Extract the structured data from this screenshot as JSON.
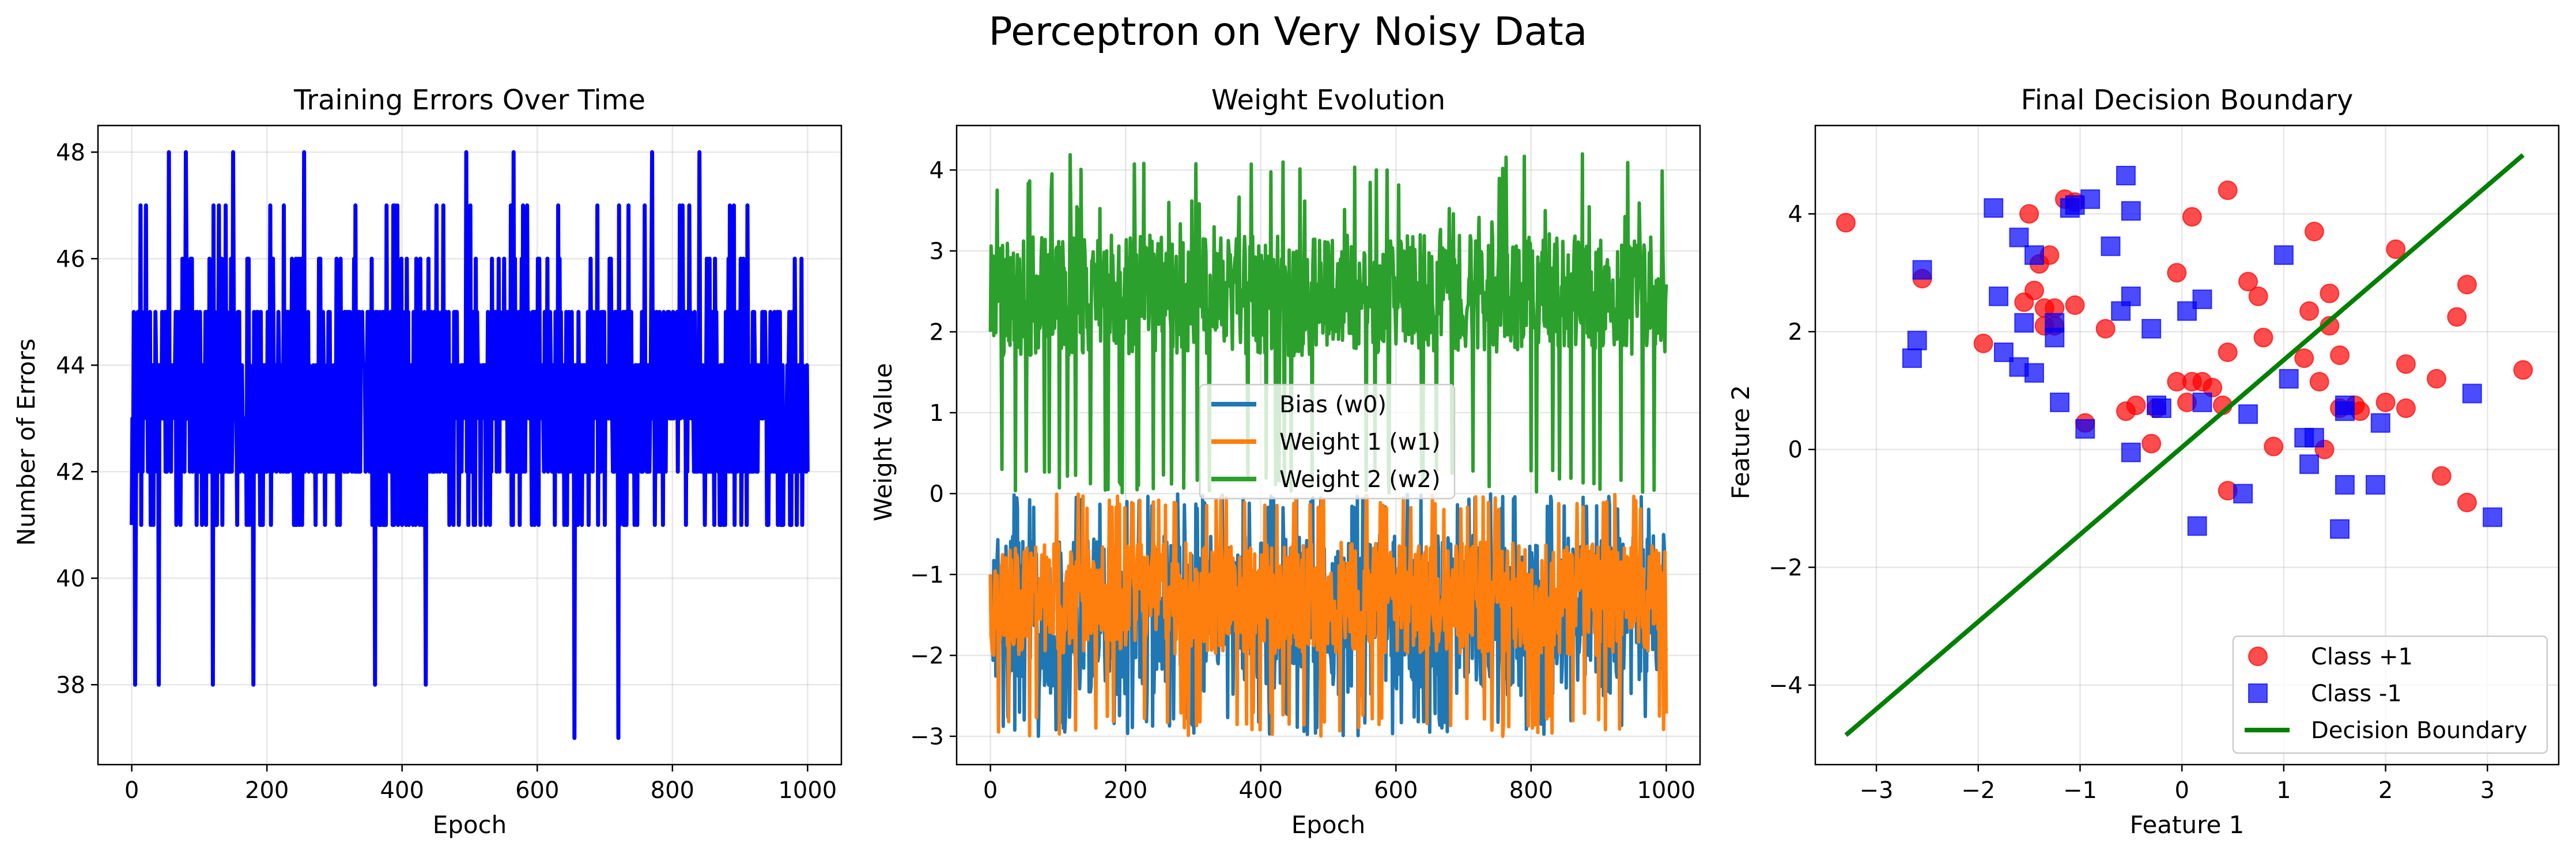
{
  "figure": {
    "title": "Perceptron on Very Noisy Data"
  },
  "colors": {
    "errors": "#0000ff",
    "bias": "#1f77b4",
    "w1": "#ff7f0e",
    "w2": "#2ca02c",
    "class_pos": "#ff0000",
    "class_neg": "#0000ff",
    "boundary": "#008000"
  },
  "chart_data": [
    {
      "type": "line",
      "title": "Training Errors Over Time",
      "xlabel": "Epoch",
      "ylabel": "Number of Errors",
      "xlim": [
        -50,
        1050
      ],
      "ylim": [
        36.5,
        48.5
      ],
      "xticks": [
        0,
        200,
        400,
        600,
        800,
        1000
      ],
      "yticks": [
        38,
        40,
        42,
        44,
        46,
        48
      ],
      "grid": true,
      "legend": "none",
      "series": [
        {
          "color": "#0000ff",
          "x_range": [
            0,
            1000
          ],
          "oscillation": "values alternate every epoch between about 41 and 47, mostly 42-46",
          "notable_points": [
            {
              "x": 5,
              "y": 38
            },
            {
              "x": 40,
              "y": 38
            },
            {
              "x": 55,
              "y": 48
            },
            {
              "x": 80,
              "y": 48
            },
            {
              "x": 120,
              "y": 38
            },
            {
              "x": 150,
              "y": 48
            },
            {
              "x": 180,
              "y": 38
            },
            {
              "x": 255,
              "y": 48
            },
            {
              "x": 360,
              "y": 38
            },
            {
              "x": 435,
              "y": 38
            },
            {
              "x": 495,
              "y": 48
            },
            {
              "x": 565,
              "y": 48
            },
            {
              "x": 655,
              "y": 37
            },
            {
              "x": 720,
              "y": 37
            },
            {
              "x": 770,
              "y": 48
            },
            {
              "x": 840,
              "y": 48
            }
          ]
        }
      ]
    },
    {
      "type": "line",
      "title": "Weight Evolution",
      "xlabel": "Epoch",
      "ylabel": "Weight Value",
      "xlim": [
        -50,
        1050
      ],
      "ylim": [
        -3.35,
        4.55
      ],
      "xticks": [
        0,
        200,
        400,
        600,
        800,
        1000
      ],
      "yticks": [
        -3,
        -2,
        -1,
        0,
        1,
        2,
        3,
        4
      ],
      "grid": true,
      "legend": "center",
      "series": [
        {
          "name": "Bias (w0)",
          "color": "#1f77b4",
          "x_range": [
            0,
            1000
          ],
          "values_range": [
            -3,
            0
          ],
          "typical_range": [
            -2.5,
            -0.5
          ]
        },
        {
          "name": "Weight 1 (w1)",
          "color": "#ff7f0e",
          "x_range": [
            0,
            1000
          ],
          "values_range": [
            -3,
            0
          ],
          "typical_range": [
            -2.0,
            -0.6
          ]
        },
        {
          "name": "Weight 2 (w2)",
          "color": "#2ca02c",
          "x_range": [
            0,
            1000
          ],
          "values_range": [
            0,
            4.2
          ],
          "typical_range": [
            1.7,
            3.2
          ]
        }
      ]
    },
    {
      "type": "scatter",
      "title": "Final Decision Boundary",
      "xlabel": "Feature 1",
      "ylabel": "Feature 2",
      "xlim": [
        -3.6,
        3.7
      ],
      "ylim": [
        -5.35,
        5.5
      ],
      "xticks": [
        -3,
        -2,
        -1,
        0,
        1,
        2,
        3
      ],
      "yticks": [
        -4,
        -2,
        0,
        2,
        4
      ],
      "grid": true,
      "legend": "lower right",
      "series": [
        {
          "name": "Class +1",
          "color": "#ff0000",
          "marker": "circle",
          "points": [
            [
              -3.3,
              3.85
            ],
            [
              -2.55,
              2.9
            ],
            [
              -1.95,
              1.8
            ],
            [
              -1.55,
              2.5
            ],
            [
              -1.5,
              4.0
            ],
            [
              -1.45,
              2.7
            ],
            [
              -1.4,
              3.15
            ],
            [
              -1.35,
              2.4
            ],
            [
              -1.3,
              3.3
            ],
            [
              -1.25,
              2.4
            ],
            [
              -1.35,
              2.1
            ],
            [
              -1.25,
              2.1
            ],
            [
              -1.15,
              4.25
            ],
            [
              -1.05,
              4.2
            ],
            [
              -1.05,
              2.45
            ],
            [
              -0.95,
              0.45
            ],
            [
              -0.75,
              2.05
            ],
            [
              -0.55,
              0.65
            ],
            [
              -0.45,
              0.75
            ],
            [
              -0.3,
              0.1
            ],
            [
              -0.25,
              0.7
            ],
            [
              -0.05,
              3.0
            ],
            [
              -0.05,
              1.15
            ],
            [
              0.05,
              0.8
            ],
            [
              0.1,
              3.95
            ],
            [
              0.1,
              1.15
            ],
            [
              0.2,
              1.15
            ],
            [
              0.3,
              1.05
            ],
            [
              0.4,
              0.75
            ],
            [
              0.45,
              1.65
            ],
            [
              0.45,
              4.4
            ],
            [
              0.45,
              -0.7
            ],
            [
              0.65,
              2.85
            ],
            [
              0.75,
              2.6
            ],
            [
              0.8,
              1.9
            ],
            [
              0.9,
              0.05
            ],
            [
              1.2,
              1.55
            ],
            [
              1.25,
              2.35
            ],
            [
              1.3,
              3.7
            ],
            [
              1.35,
              1.15
            ],
            [
              1.4,
              0.0
            ],
            [
              1.45,
              2.1
            ],
            [
              1.45,
              2.65
            ],
            [
              1.55,
              1.6
            ],
            [
              1.55,
              0.7
            ],
            [
              1.7,
              0.75
            ],
            [
              1.75,
              0.65
            ],
            [
              2.0,
              0.8
            ],
            [
              2.1,
              3.4
            ],
            [
              2.2,
              1.45
            ],
            [
              2.2,
              0.7
            ],
            [
              2.5,
              1.2
            ],
            [
              2.55,
              -0.45
            ],
            [
              2.7,
              2.25
            ],
            [
              2.8,
              2.8
            ],
            [
              2.8,
              -0.9
            ],
            [
              3.35,
              1.35
            ]
          ]
        },
        {
          "name": "Class -1",
          "color": "#0000ff",
          "marker": "square",
          "points": [
            [
              -2.65,
              1.55
            ],
            [
              -2.6,
              1.85
            ],
            [
              -2.55,
              3.05
            ],
            [
              -1.85,
              4.1
            ],
            [
              -1.8,
              2.6
            ],
            [
              -1.75,
              1.65
            ],
            [
              -1.6,
              3.6
            ],
            [
              -1.55,
              2.15
            ],
            [
              -1.6,
              1.4
            ],
            [
              -1.45,
              1.3
            ],
            [
              -1.45,
              3.3
            ],
            [
              -1.25,
              2.15
            ],
            [
              -1.25,
              1.9
            ],
            [
              -1.2,
              0.8
            ],
            [
              -1.1,
              4.1
            ],
            [
              -1.05,
              4.15
            ],
            [
              -0.95,
              0.35
            ],
            [
              -0.9,
              4.25
            ],
            [
              -0.7,
              3.45
            ],
            [
              -0.6,
              2.35
            ],
            [
              -0.55,
              4.65
            ],
            [
              -0.5,
              4.05
            ],
            [
              -0.5,
              2.6
            ],
            [
              -0.5,
              -0.05
            ],
            [
              -0.3,
              2.05
            ],
            [
              -0.2,
              0.7
            ],
            [
              -0.25,
              0.75
            ],
            [
              0.05,
              2.35
            ],
            [
              0.15,
              -1.3
            ],
            [
              0.2,
              2.55
            ],
            [
              0.2,
              0.8
            ],
            [
              0.65,
              0.6
            ],
            [
              0.6,
              -0.75
            ],
            [
              1.0,
              3.3
            ],
            [
              1.05,
              1.2
            ],
            [
              1.2,
              0.2
            ],
            [
              1.25,
              -0.25
            ],
            [
              1.3,
              0.2
            ],
            [
              1.55,
              -1.35
            ],
            [
              1.6,
              0.75
            ],
            [
              1.6,
              0.65
            ],
            [
              1.6,
              -0.6
            ],
            [
              1.9,
              -0.6
            ],
            [
              1.95,
              0.45
            ],
            [
              2.85,
              0.95
            ],
            [
              3.05,
              -1.15
            ]
          ]
        },
        {
          "name": "Decision Boundary",
          "color": "#008000",
          "type": "line",
          "x": [
            -3.3,
            3.35
          ],
          "y": [
            -4.85,
            5.0
          ]
        }
      ]
    }
  ]
}
